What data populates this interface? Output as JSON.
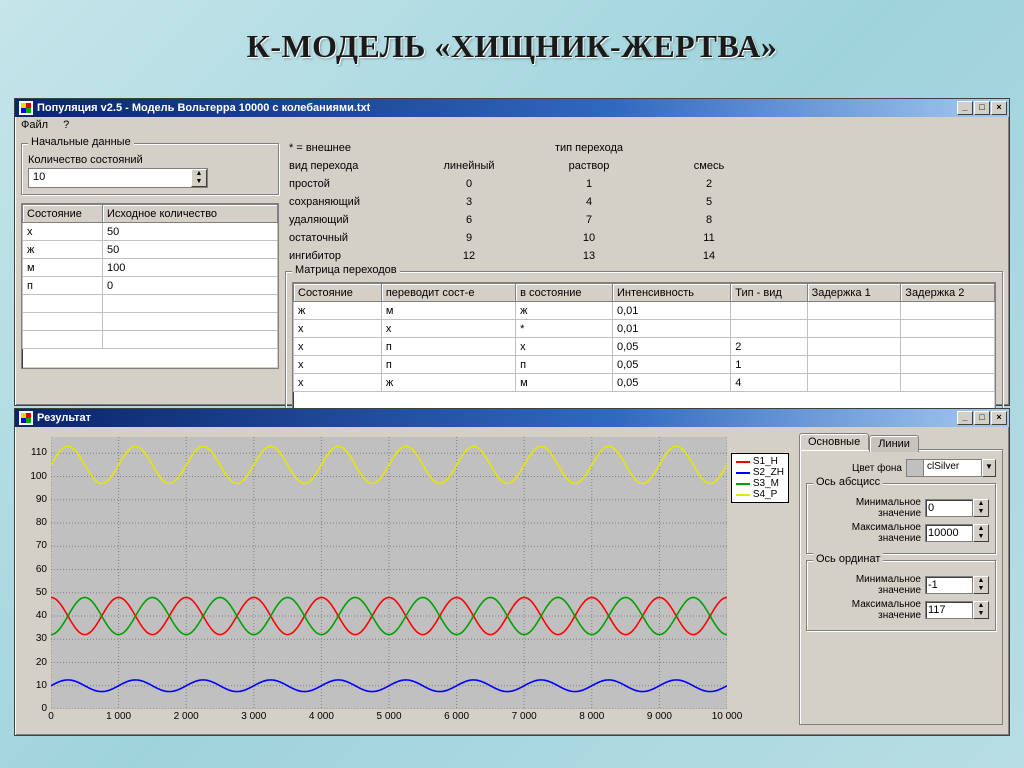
{
  "page_title": "К-МОДЕЛЬ «ХИЩНИК-ЖЕРТВА»",
  "win1": {
    "title": "Популяция v2.5 - Модель Вольтерра 10000 с колебаниями.txt",
    "menu": {
      "file": "Файл",
      "help": "?"
    },
    "left_group_title": "Начальные данные",
    "count_label": "Количество состояний",
    "count_value": "10",
    "states_table": {
      "columns": [
        "Состояние",
        "Исходное количество"
      ],
      "rows": [
        [
          "х",
          "50"
        ],
        [
          "ж",
          "50"
        ],
        [
          "м",
          "100"
        ],
        [
          "п",
          "0"
        ],
        [
          "",
          ""
        ],
        [
          "",
          ""
        ],
        [
          "",
          ""
        ]
      ]
    },
    "info": {
      "header_note": "* = внешнее",
      "col_header": "тип перехода",
      "row_header": "вид перехода",
      "cols": [
        "линейный",
        "раствор",
        "смесь"
      ],
      "rows": [
        {
          "label": "простой",
          "vals": [
            "0",
            "1",
            "2"
          ]
        },
        {
          "label": "сохраняющий",
          "vals": [
            "3",
            "4",
            "5"
          ]
        },
        {
          "label": "удаляющий",
          "vals": [
            "6",
            "7",
            "8"
          ]
        },
        {
          "label": "остаточный",
          "vals": [
            "9",
            "10",
            "11"
          ]
        },
        {
          "label": "ингибитор",
          "vals": [
            "12",
            "13",
            "14"
          ]
        }
      ]
    },
    "matrix": {
      "group_title": "Матрица переходов",
      "columns": [
        "Состояние",
        "переводит сост-е",
        "в состояние",
        "Интенсивность",
        "Тип - вид",
        "Задержка 1",
        "Задержка 2"
      ],
      "rows": [
        [
          "ж",
          "м",
          "ж",
          "0,01",
          "",
          "",
          ""
        ],
        [
          "х",
          "х",
          "*",
          "0,01",
          "",
          "",
          ""
        ],
        [
          "х",
          "п",
          "х",
          "0,05",
          "2",
          "",
          ""
        ],
        [
          "х",
          "п",
          "п",
          "0,05",
          "1",
          "",
          ""
        ],
        [
          "х",
          "ж",
          "м",
          "0,05",
          "4",
          "",
          ""
        ]
      ]
    }
  },
  "win2": {
    "title": "Результат",
    "chart": {
      "background_color": "#c0c0c0",
      "grid_color": "#808080",
      "xlim": [
        0,
        10000
      ],
      "xtick_step": 1000,
      "xtick_labels": [
        "0",
        "1 000",
        "2 000",
        "3 000",
        "4 000",
        "5 000",
        "6 000",
        "7 000",
        "8 000",
        "9 000",
        "10 000"
      ],
      "ylim": [
        0,
        117
      ],
      "yticks": [
        0,
        10,
        20,
        30,
        40,
        50,
        60,
        70,
        80,
        90,
        100,
        110
      ],
      "series": [
        {
          "name": "S1_Н",
          "color": "#ff0000",
          "baseline": 40,
          "amplitude": 8,
          "periods": 10,
          "phase": 0.25
        },
        {
          "name": "S2_ZH",
          "color": "#0000ff",
          "baseline": 10,
          "amplitude": 2.5,
          "periods": 10,
          "phase": 0
        },
        {
          "name": "S3_M",
          "color": "#00a000",
          "baseline": 40,
          "amplitude": 8,
          "periods": 10,
          "phase": 0.75
        },
        {
          "name": "S4_P",
          "color": "#e6e600",
          "baseline": 105,
          "amplitude": 8,
          "periods": 10,
          "phase": 0
        }
      ],
      "line_width": 1.6
    },
    "tabs": {
      "main": "Основные",
      "lines": "Линии"
    },
    "settings": {
      "bg_label": "Цвет фона",
      "bg_value": "clSilver",
      "x_group": "Ось абсцисс",
      "y_group": "Ось ординат",
      "min_label": "Минимальное значение",
      "max_label": "Максимальное значение",
      "xmin": "0",
      "xmax": "10000",
      "ymin": "-1",
      "ymax": "117"
    }
  },
  "colors": {
    "window_bg": "#d4d0c8",
    "titlebar_start": "#0a246a",
    "titlebar_end": "#a6caf0"
  }
}
